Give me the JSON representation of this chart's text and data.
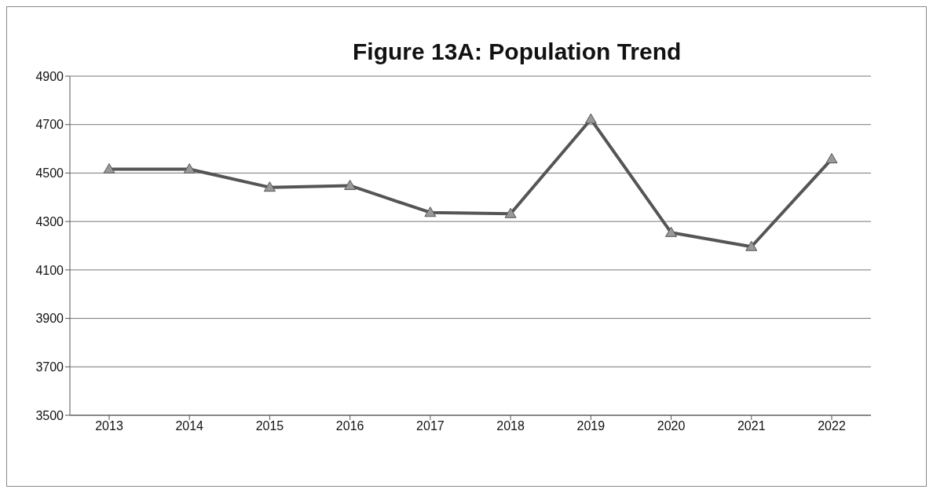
{
  "chart_data": {
    "type": "line",
    "title": "Figure 13A: Population Trend",
    "categories": [
      "2013",
      "2014",
      "2015",
      "2016",
      "2017",
      "2018",
      "2019",
      "2020",
      "2021",
      "2022"
    ],
    "series": [
      {
        "color": "#555555",
        "marker": "triangle",
        "values": [
          4516,
          4516,
          4441,
          4448,
          4337,
          4332,
          4722,
          4254,
          4196,
          4558
        ]
      }
    ],
    "ylim": [
      3500,
      4900
    ],
    "yticks": [
      3500,
      3700,
      3900,
      4100,
      4300,
      4500,
      4700,
      4900
    ],
    "grid": "y",
    "legend": false
  }
}
